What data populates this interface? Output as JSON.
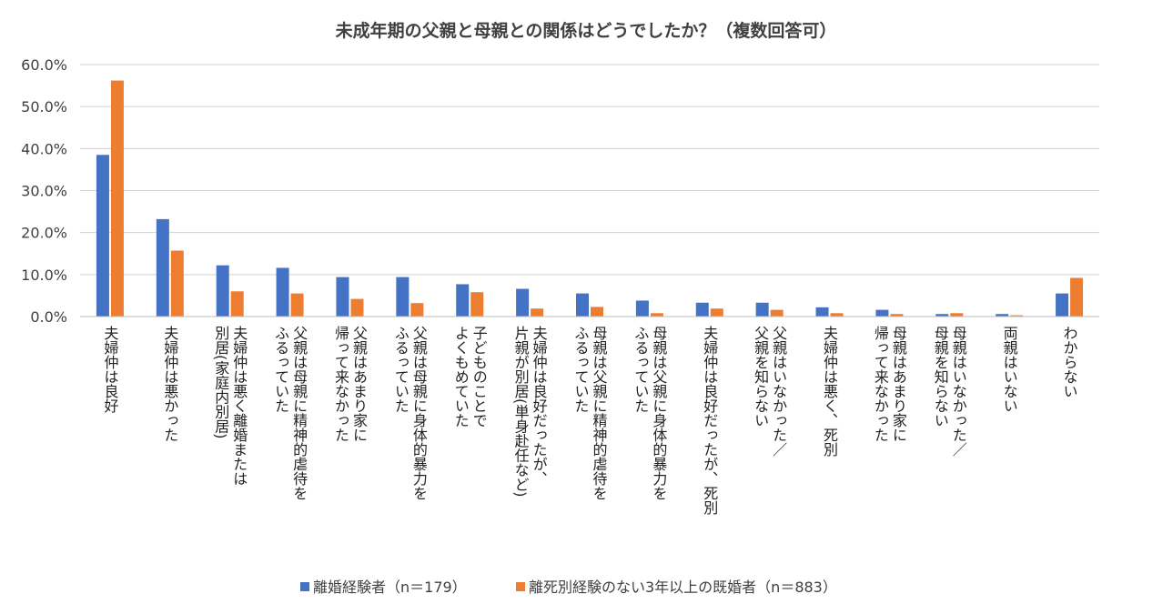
{
  "chart_data": {
    "type": "bar",
    "title": "未成年期の父親と母親との関係はどうでしたか？（複数回答可）",
    "xlabel": "",
    "ylabel": "",
    "ylim": [
      0,
      60
    ],
    "yticks": [
      0,
      10,
      20,
      30,
      40,
      50,
      60
    ],
    "ytick_labels": [
      "0.0%",
      "10.0%",
      "20.0%",
      "30.0%",
      "40.0%",
      "50.0%",
      "60.0%"
    ],
    "grid": true,
    "legend_position": "bottom",
    "categories": [
      [
        "夫婦仲は良好"
      ],
      [
        "夫婦仲は悪かった"
      ],
      [
        "夫婦仲は悪く離婚または",
        "別居(家庭内別居)"
      ],
      [
        "父親は母親に精神的虐待を",
        "ふるっていた"
      ],
      [
        "父親はあまり家に",
        "帰って来なかった"
      ],
      [
        "父親は母親に身体的暴力を",
        "ふるっていた"
      ],
      [
        "子どものことで",
        "よくもめていた"
      ],
      [
        "夫婦仲は良好だったが、",
        "片親が別居(単身赴任など)"
      ],
      [
        "母親は父親に精神的虐待を",
        "ふるっていた"
      ],
      [
        "母親は父親に身体的暴力を",
        "ふるっていた"
      ],
      [
        "夫婦仲は良好だったが、死別"
      ],
      [
        "父親はいなかった／",
        "父親を知らない"
      ],
      [
        "夫婦仲は悪く、死別"
      ],
      [
        "母親はあまり家に",
        "帰って来なかった"
      ],
      [
        "母親はいなかった／",
        "母親を知らない"
      ],
      [
        "両親はいない"
      ],
      [
        "わからない"
      ]
    ],
    "series": [
      {
        "name": "離婚経験者（n＝179）",
        "color": "#4472c4",
        "values": [
          38.5,
          23.2,
          12.2,
          11.6,
          9.4,
          9.4,
          7.7,
          6.6,
          5.5,
          3.8,
          3.3,
          3.3,
          2.2,
          1.6,
          0.6,
          0.6,
          5.5
        ]
      },
      {
        "name": "離死別経験のない3年以上の既婚者（n＝883）",
        "color": "#ed7d31",
        "values": [
          56.2,
          15.7,
          6.0,
          5.5,
          4.2,
          3.2,
          5.8,
          1.9,
          2.3,
          0.8,
          1.9,
          1.6,
          0.8,
          0.6,
          0.8,
          0.3,
          9.2
        ]
      }
    ]
  }
}
